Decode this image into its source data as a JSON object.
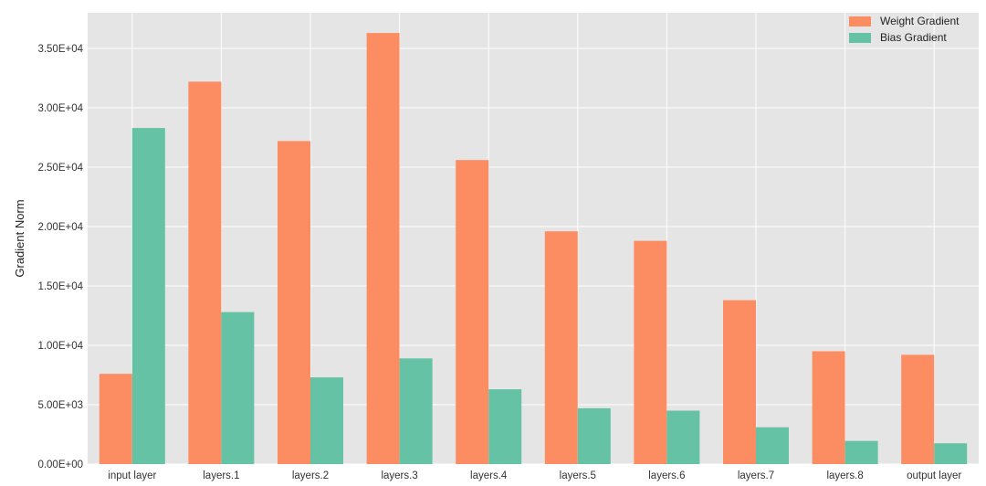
{
  "chart_data": {
    "type": "bar",
    "title": "",
    "xlabel": "",
    "ylabel": "Gradient Norm",
    "ylim": [
      0,
      38000
    ],
    "yticks": [
      0,
      5000,
      10000,
      15000,
      20000,
      25000,
      30000,
      35000
    ],
    "ytick_labels": [
      "0.00E+00",
      "5.00E+03",
      "1.00E+04",
      "1.50E+04",
      "2.00E+04",
      "2.50E+04",
      "3.00E+04",
      "3.50E+04"
    ],
    "grid": true,
    "legend_position": "top-right",
    "categories": [
      "input layer",
      "layers.1",
      "layers.2",
      "layers.3",
      "layers.4",
      "layers.5",
      "layers.6",
      "layers.7",
      "layers.8",
      "output layer"
    ],
    "series": [
      {
        "name": "Weight Gradient",
        "color": "#FC8D62",
        "values": [
          7600,
          32200,
          27200,
          36300,
          25600,
          19600,
          18800,
          13800,
          9500,
          9200
        ]
      },
      {
        "name": "Bias Gradient",
        "color": "#66C2A5",
        "values": [
          28300,
          12800,
          7300,
          8900,
          6300,
          4700,
          4500,
          3100,
          1950,
          1750
        ]
      }
    ]
  },
  "colors": {
    "plot_background": "#E5E5E5",
    "grid": "#FFFFFF"
  }
}
